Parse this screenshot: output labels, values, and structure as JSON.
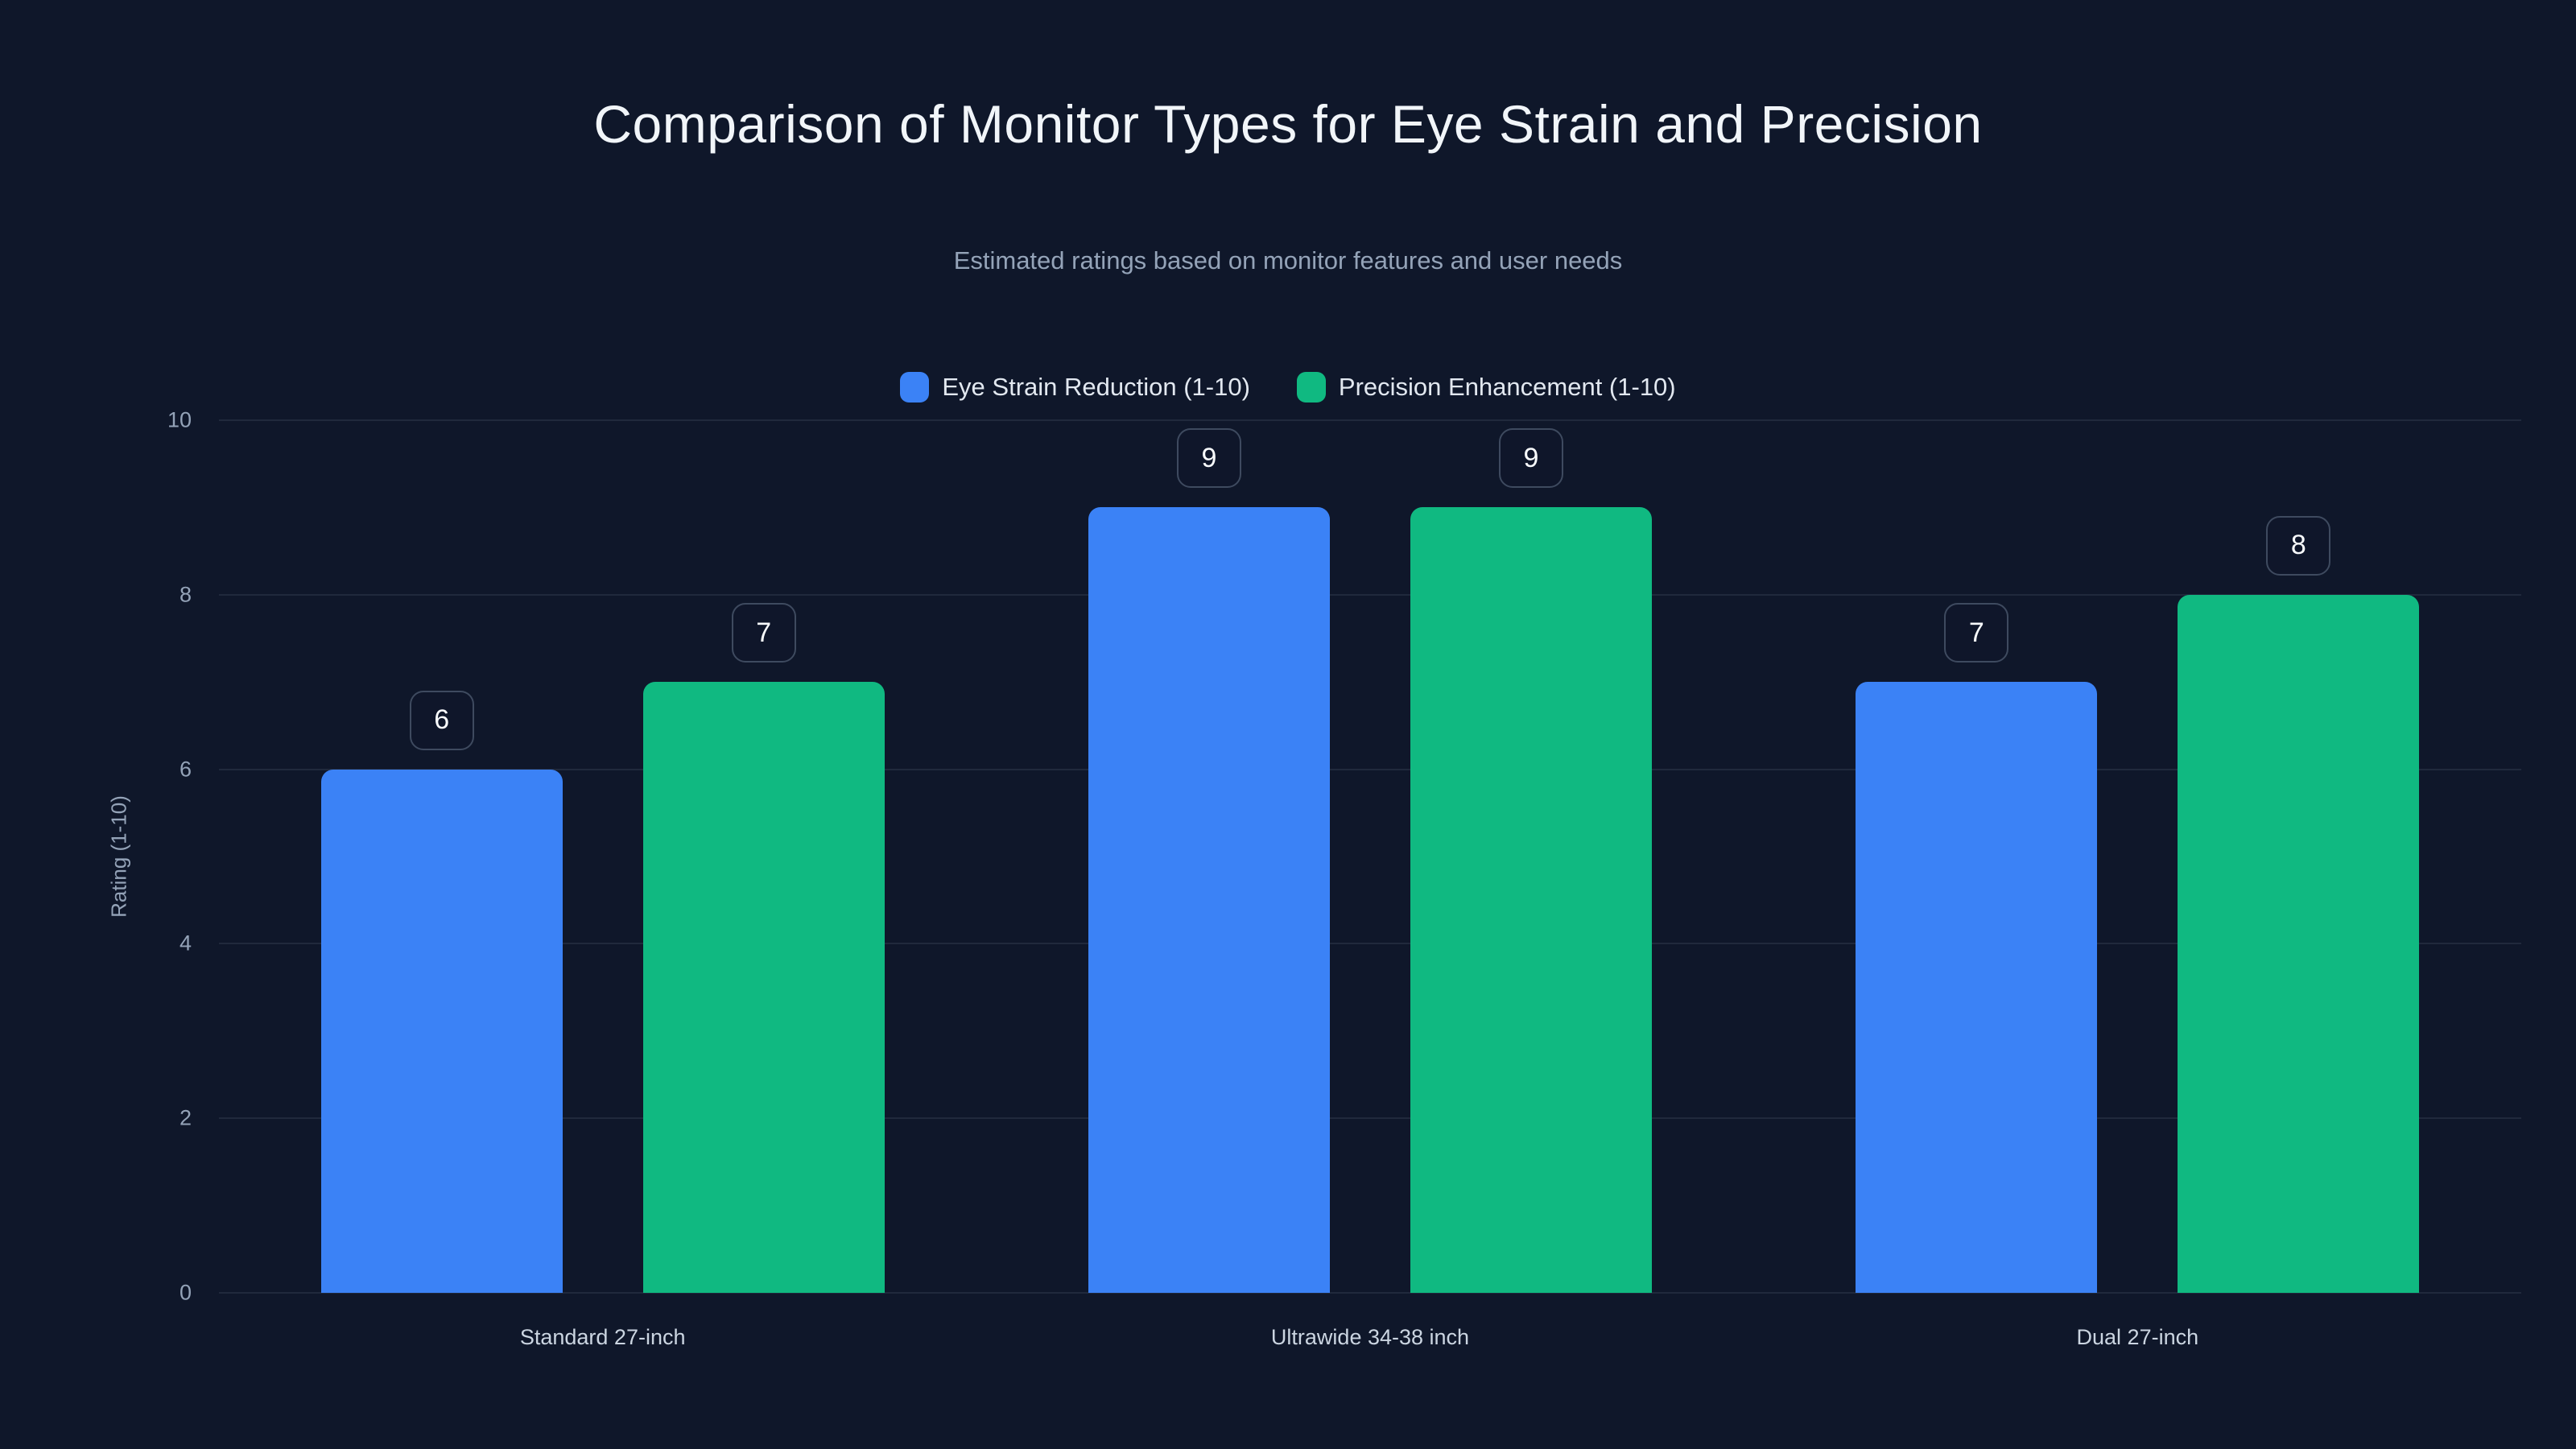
{
  "chart_data": {
    "type": "bar",
    "title": "Comparison of Monitor Types for Eye Strain and Precision",
    "subtitle": "Estimated ratings based on monitor features and user needs",
    "categories": [
      "Standard 27-inch",
      "Ultrawide 34-38 inch",
      "Dual 27-inch"
    ],
    "series": [
      {
        "name": "Eye Strain Reduction (1-10)",
        "color": "#3b82f6",
        "values": [
          6,
          9,
          7
        ]
      },
      {
        "name": "Precision Enhancement (1-10)",
        "color": "#10b981",
        "values": [
          7,
          9,
          8
        ]
      }
    ],
    "xlabel": "",
    "ylabel": "Rating (1-10)",
    "ylim": [
      0,
      10
    ],
    "yticks": [
      0,
      2,
      4,
      6,
      8,
      10
    ],
    "grid": "horizontal",
    "legend_position": "top-center",
    "value_labels": "rounded badge above each bar"
  },
  "colors": {
    "background": "#0f172a",
    "title_text": "#f1f5f9",
    "subtitle_text": "#94a3b8",
    "axis_text": "#94a3b8",
    "category_text": "#cbd5e1",
    "legend_text": "#e2e8f0",
    "gridline": "rgba(148,163,184,0.13)",
    "badge_border": "#3e4a5f",
    "badge_text": "#f8fafc",
    "series_blue": "#3b82f6",
    "series_green": "#10b981"
  }
}
